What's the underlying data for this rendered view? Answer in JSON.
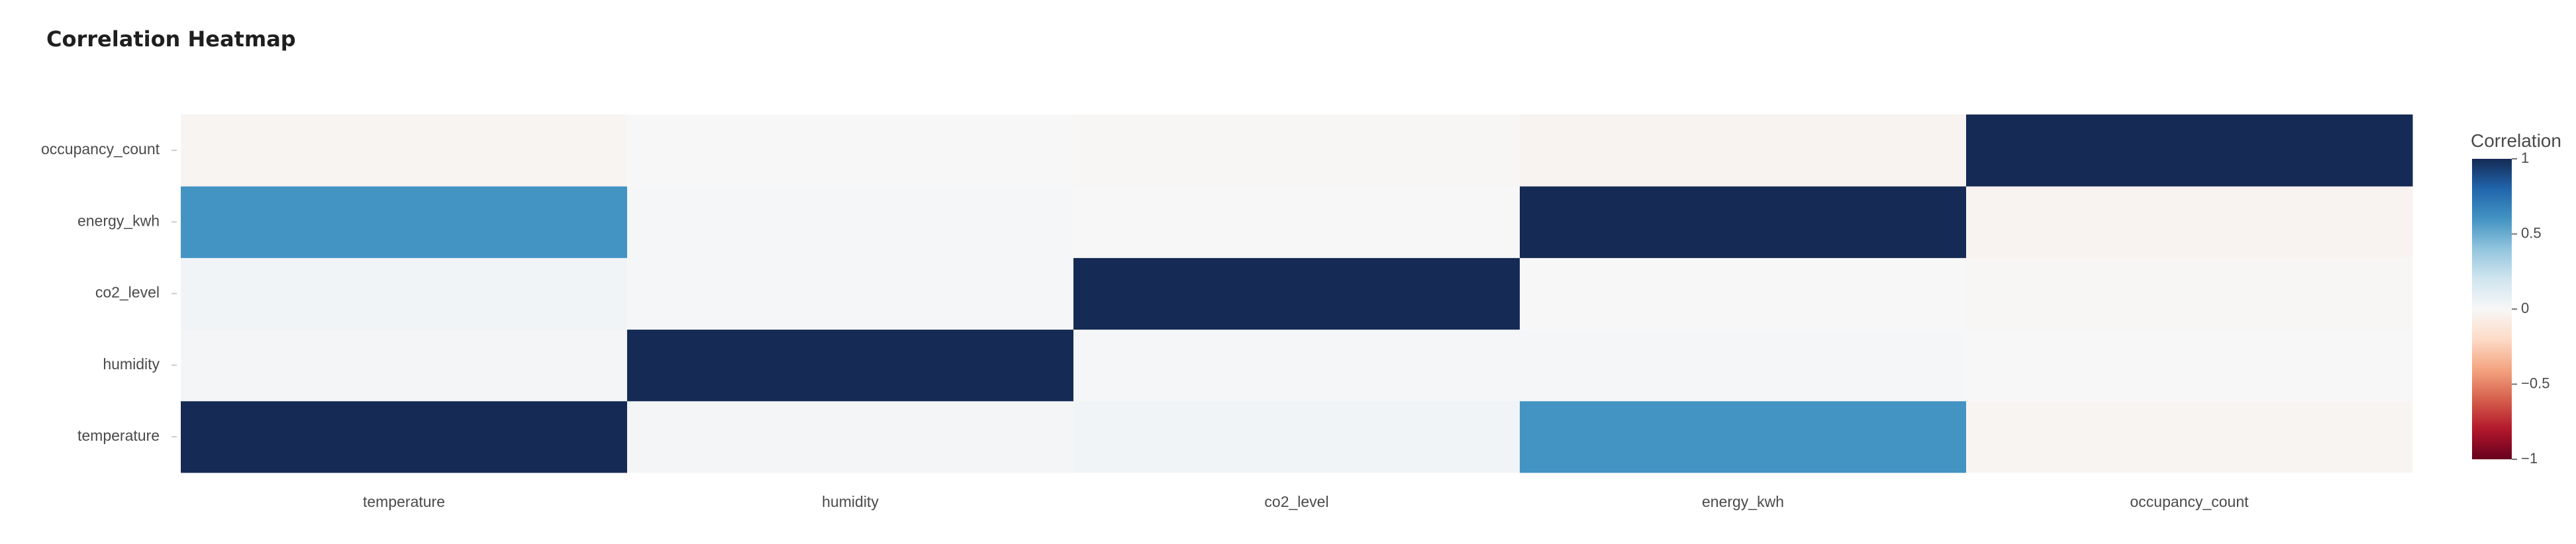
{
  "chart_data": {
    "type": "heatmap",
    "title": "Correlation Heatmap",
    "x_categories": [
      "temperature",
      "humidity",
      "co2_level",
      "energy_kwh",
      "occupancy_count"
    ],
    "y_categories": [
      "temperature",
      "humidity",
      "co2_level",
      "energy_kwh",
      "occupancy_count"
    ],
    "z": [
      [
        1.0,
        0.02,
        0.03,
        0.6,
        -0.02
      ],
      [
        0.02,
        1.0,
        0.01,
        0.01,
        0.0
      ],
      [
        0.03,
        0.01,
        1.0,
        0.0,
        -0.01
      ],
      [
        0.6,
        0.01,
        0.0,
        1.0,
        -0.03
      ],
      [
        -0.02,
        0.0,
        -0.01,
        -0.03,
        1.0
      ]
    ],
    "zmin": -1,
    "zmax": 1,
    "colorscale": [
      [
        0.0,
        "#67001f"
      ],
      [
        0.1,
        "#b2182b"
      ],
      [
        0.2,
        "#d6604d"
      ],
      [
        0.3,
        "#f4a582"
      ],
      [
        0.4,
        "#fddbc7"
      ],
      [
        0.5,
        "#f7f7f7"
      ],
      [
        0.6,
        "#d1e5f0"
      ],
      [
        0.7,
        "#92c5de"
      ],
      [
        0.8,
        "#4393c3"
      ],
      [
        0.9,
        "#2166ac"
      ],
      [
        1.0,
        "#152a55"
      ]
    ],
    "colorbar": {
      "title": "Correlation",
      "ticks": [
        1,
        0.5,
        0,
        -0.5,
        -1
      ],
      "tick_labels": [
        "1",
        "0.5",
        "0",
        "−0.5",
        "−1"
      ]
    },
    "grid": false,
    "legend": "colorbar-right"
  }
}
